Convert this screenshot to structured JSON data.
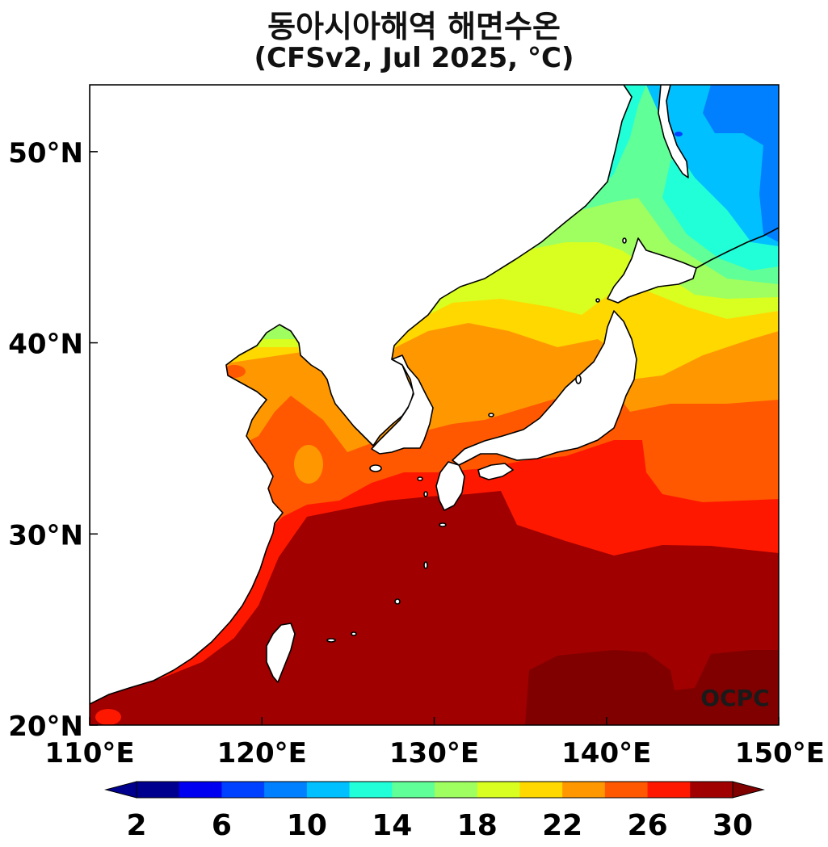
{
  "title": {
    "line1": "동아시아해역 해면수온",
    "line2": "(CFSv2, Jul 2025, °C)"
  },
  "map": {
    "lon_range": [
      110,
      150
    ],
    "lat_range": [
      20,
      53.5
    ],
    "lon_ticks": [
      "110°E",
      "120°E",
      "130°E",
      "140°E",
      "150°E"
    ],
    "lat_ticks": [
      "20°N",
      "30°N",
      "40°N",
      "50°N"
    ],
    "credit": "OCPC",
    "land_color": "#ffffff",
    "coast_color": "#000000"
  },
  "colorbar": {
    "tick_labels": [
      "2",
      "6",
      "10",
      "14",
      "18",
      "22",
      "26",
      "30"
    ],
    "levels": [
      2,
      4,
      6,
      8,
      10,
      12,
      14,
      16,
      18,
      20,
      22,
      24,
      26,
      28,
      30
    ],
    "colors": [
      "#00008f",
      "#0000f0",
      "#0040ff",
      "#0080ff",
      "#00c0ff",
      "#20ffd8",
      "#60ff98",
      "#a0ff60",
      "#d8ff20",
      "#ffd800",
      "#ff9800",
      "#ff5800",
      "#ff1800",
      "#a00000"
    ],
    "under_color": "#00008f",
    "over_color": "#800000",
    "extend": "both"
  }
}
